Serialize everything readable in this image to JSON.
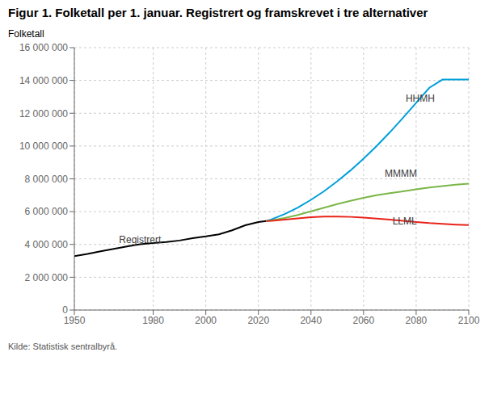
{
  "chart_data": {
    "type": "line",
    "title": "Figur 1. Folketall per 1. januar. Registrert og framskrevet i tre alternativer",
    "ylabel": "Folketall",
    "source": "Kilde: Statistisk sentralbyrå.",
    "xlim": [
      1950,
      2100
    ],
    "xticks": [
      1950,
      1980,
      2000,
      2020,
      2040,
      2060,
      2080,
      2100
    ],
    "ylim": [
      0,
      16000000
    ],
    "yticks": [
      0,
      {
        "value": 2000000,
        "label": "2 000 000"
      },
      {
        "value": 4000000,
        "label": "4 000 000"
      },
      {
        "value": 6000000,
        "label": "6 000 000"
      },
      {
        "value": 8000000,
        "label": "8 000 000"
      },
      {
        "value": 10000000,
        "label": "10 000 000"
      },
      {
        "value": 12000000,
        "label": "12 000 000"
      },
      {
        "value": 14000000,
        "label": "14 000 000"
      },
      {
        "value": 16000000,
        "label": "16 000 000"
      }
    ],
    "grid": true,
    "series": [
      {
        "name": "Registrert",
        "color": "#000000",
        "x": [
          1950,
          1955,
          1960,
          1965,
          1970,
          1975,
          1980,
          1985,
          1990,
          1995,
          2000,
          2005,
          2010,
          2015,
          2020,
          2023
        ],
        "values": [
          3280000,
          3420000,
          3580000,
          3730000,
          3880000,
          4010000,
          4090000,
          4150000,
          4240000,
          4380000,
          4490000,
          4620000,
          4860000,
          5166000,
          5368000,
          5425000
        ]
      },
      {
        "name": "HHMH",
        "color": "#009fda",
        "x": [
          2023,
          2025,
          2030,
          2035,
          2040,
          2045,
          2050,
          2055,
          2060,
          2065,
          2070,
          2075,
          2080,
          2085,
          2090,
          2095,
          2100
        ],
        "values": [
          5425000,
          5530000,
          5850000,
          6250000,
          6720000,
          7250000,
          7850000,
          8510000,
          9230000,
          10010000,
          10840000,
          11720000,
          12630000,
          13550000,
          14050000,
          14050000,
          14050000
        ]
      },
      {
        "name": "MMMM",
        "color": "#7ab648",
        "x": [
          2023,
          2025,
          2030,
          2035,
          2040,
          2045,
          2050,
          2055,
          2060,
          2065,
          2070,
          2075,
          2080,
          2085,
          2090,
          2095,
          2100
        ],
        "values": [
          5425000,
          5470000,
          5610000,
          5800000,
          6020000,
          6240000,
          6460000,
          6660000,
          6840000,
          7000000,
          7130000,
          7240000,
          7360000,
          7470000,
          7560000,
          7640000,
          7700000
        ]
      },
      {
        "name": "LLML",
        "color": "#e8231a",
        "x": [
          2023,
          2025,
          2030,
          2035,
          2040,
          2045,
          2050,
          2055,
          2060,
          2065,
          2070,
          2075,
          2080,
          2085,
          2090,
          2095,
          2100
        ],
        "values": [
          5425000,
          5440000,
          5510000,
          5590000,
          5660000,
          5700000,
          5700000,
          5680000,
          5640000,
          5580000,
          5510000,
          5440000,
          5370000,
          5300000,
          5250000,
          5210000,
          5180000
        ]
      }
    ],
    "annotations": [
      {
        "text": "Registrert",
        "x": 1967,
        "y": 3920000
      },
      {
        "text": "HHMH",
        "x": 2076,
        "y": 12550000
      },
      {
        "text": "MMMM",
        "x": 2068,
        "y": 8000000
      },
      {
        "text": "LLML",
        "x": 2071,
        "y": 5050000
      }
    ]
  }
}
